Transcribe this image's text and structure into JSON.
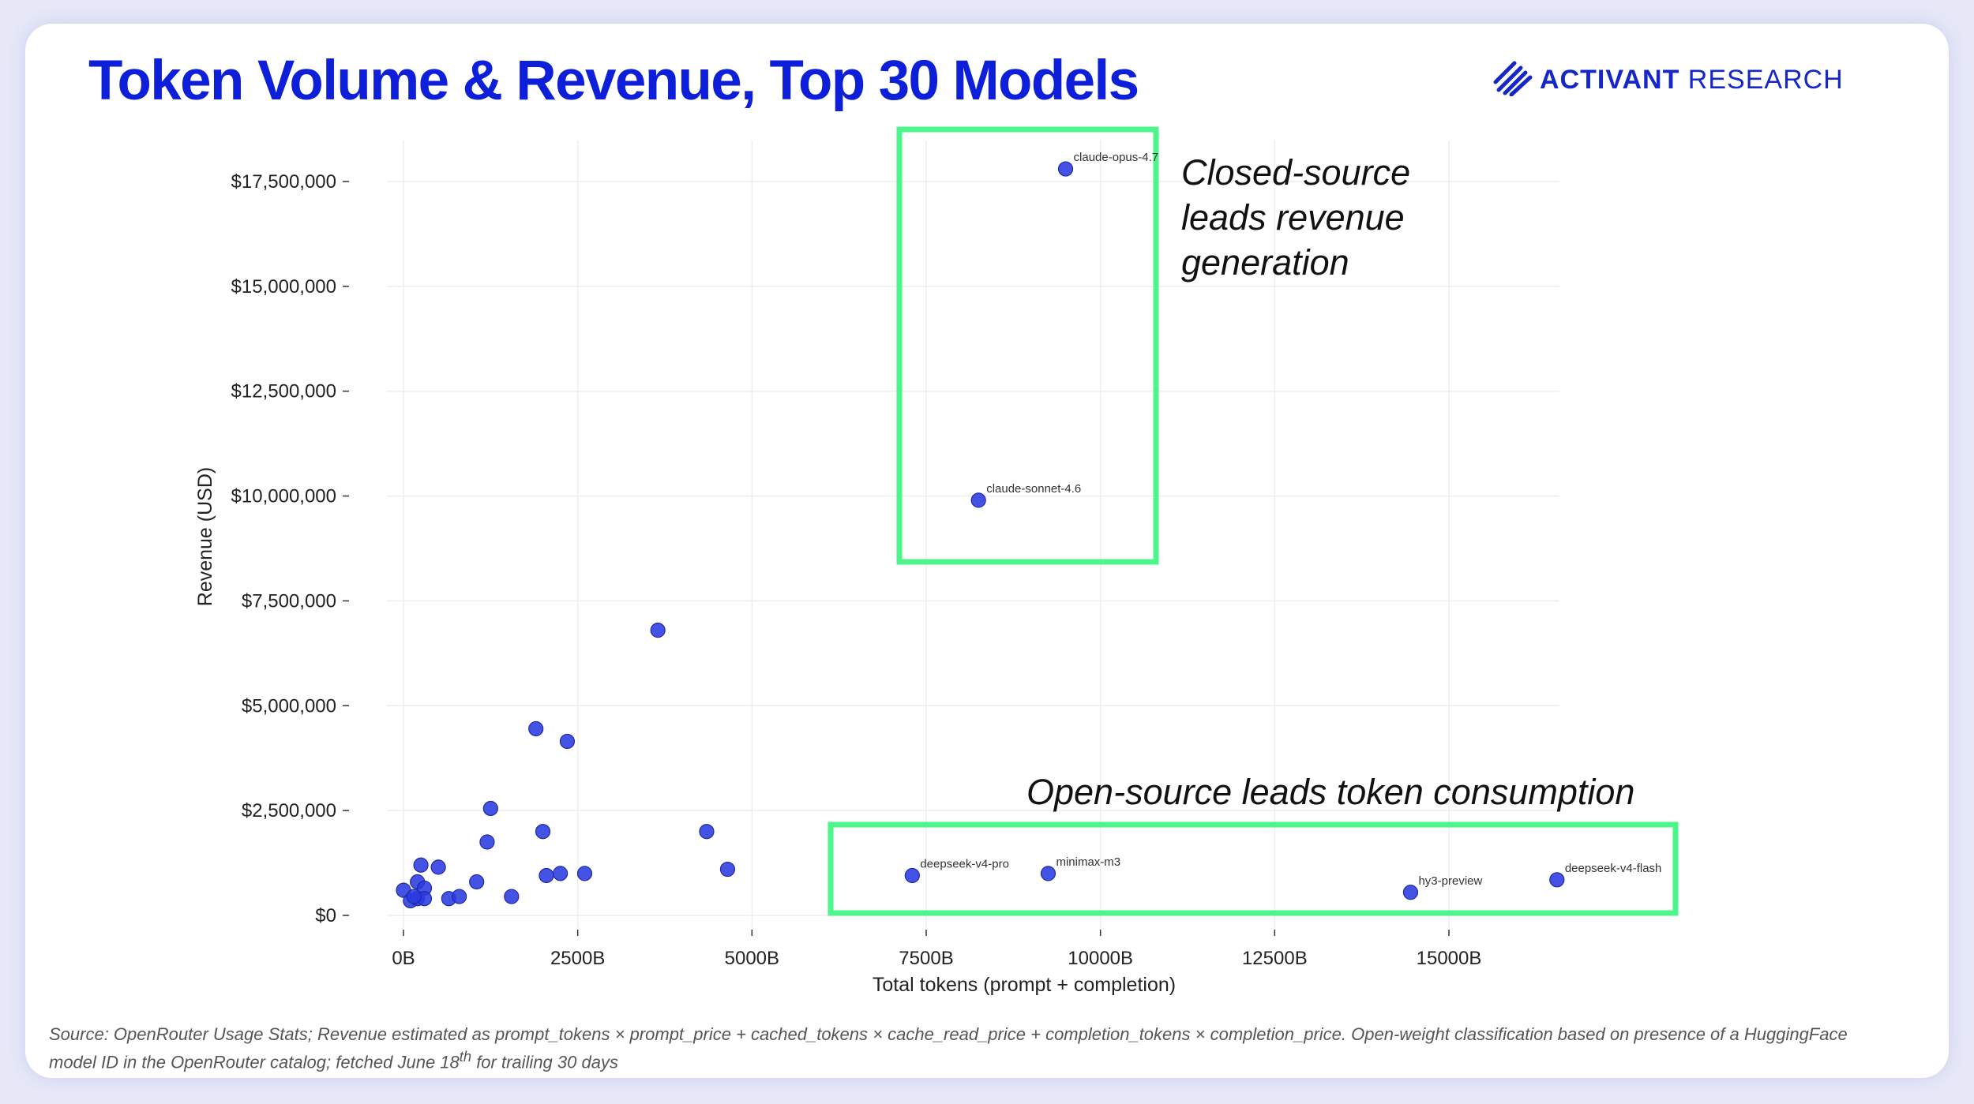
{
  "title": "Token Volume & Revenue, Top 30 Models",
  "brand": {
    "name_bold": "ACTIVANT",
    "name_light": " RESEARCH",
    "icon": "activant-logo-icon",
    "color": "#1627c8"
  },
  "colors": {
    "title": "#0d1fd8",
    "point": "#2a3be0",
    "highlight_box": "#4ef58a",
    "grid": "#ededed"
  },
  "annotations": {
    "closed": "Closed-source leads revenue generation",
    "open": "Open-source leads token consumption"
  },
  "source": {
    "prefix": "Source: OpenRouter Usage Stats; Revenue estimated as prompt_tokens × prompt_price + cached_tokens × cache_read_price + completion_tokens × completion_price. Open-weight classification based on presence of a HuggingFace model ID in the OpenRouter catalog; fetched June 18",
    "sup": "th",
    "suffix": " for trailing 30 days"
  },
  "chart_data": {
    "type": "scatter",
    "title": "Token Volume & Revenue, Top 30 Models",
    "xlabel": "Total tokens (prompt + completion)",
    "ylabel": "Revenue (USD)",
    "xlim": [
      -300,
      17500
    ],
    "ylim": [
      -300000,
      18700000
    ],
    "x_unit": "B",
    "xticks": [
      0,
      2500,
      5000,
      7500,
      10000,
      12500,
      15000
    ],
    "xtick_labels": [
      "0B",
      "2500B",
      "5000B",
      "7500B",
      "10000B",
      "12500B",
      "15000B"
    ],
    "yticks": [
      0,
      2500000,
      5000000,
      7500000,
      10000000,
      12500000,
      15000000,
      17500000
    ],
    "ytick_labels": [
      "$0",
      "$2,500,000",
      "$5,000,000",
      "$7,500,000",
      "$10,000,000",
      "$12,500,000",
      "$15,000,000",
      "$17,500,000"
    ],
    "grid": true,
    "points": [
      {
        "x": 9500,
        "y": 17800000,
        "label": "claude-opus-4.7"
      },
      {
        "x": 8250,
        "y": 9900000,
        "label": "claude-sonnet-4.6"
      },
      {
        "x": 7300,
        "y": 950000,
        "label": "deepseek-v4-pro"
      },
      {
        "x": 9250,
        "y": 1000000,
        "label": "minimax-m3"
      },
      {
        "x": 14450,
        "y": 550000,
        "label": "hy3-preview"
      },
      {
        "x": 16550,
        "y": 850000,
        "label": "deepseek-v4-flash"
      },
      {
        "x": 3650,
        "y": 6800000,
        "label": ""
      },
      {
        "x": 1900,
        "y": 4450000,
        "label": ""
      },
      {
        "x": 2350,
        "y": 4150000,
        "label": ""
      },
      {
        "x": 1250,
        "y": 2550000,
        "label": ""
      },
      {
        "x": 1200,
        "y": 1750000,
        "label": ""
      },
      {
        "x": 2000,
        "y": 2000000,
        "label": ""
      },
      {
        "x": 4350,
        "y": 2000000,
        "label": ""
      },
      {
        "x": 4650,
        "y": 1100000,
        "label": ""
      },
      {
        "x": 2050,
        "y": 950000,
        "label": ""
      },
      {
        "x": 2250,
        "y": 1000000,
        "label": ""
      },
      {
        "x": 2600,
        "y": 1000000,
        "label": ""
      },
      {
        "x": 1050,
        "y": 800000,
        "label": ""
      },
      {
        "x": 1550,
        "y": 450000,
        "label": ""
      },
      {
        "x": 500,
        "y": 1150000,
        "label": ""
      },
      {
        "x": 250,
        "y": 1200000,
        "label": ""
      },
      {
        "x": 200,
        "y": 800000,
        "label": ""
      },
      {
        "x": 300,
        "y": 650000,
        "label": ""
      },
      {
        "x": 0,
        "y": 600000,
        "label": ""
      },
      {
        "x": 100,
        "y": 350000,
        "label": ""
      },
      {
        "x": 200,
        "y": 400000,
        "label": ""
      },
      {
        "x": 300,
        "y": 400000,
        "label": ""
      },
      {
        "x": 650,
        "y": 400000,
        "label": ""
      },
      {
        "x": 800,
        "y": 450000,
        "label": ""
      },
      {
        "x": 150,
        "y": 450000,
        "label": ""
      }
    ]
  }
}
